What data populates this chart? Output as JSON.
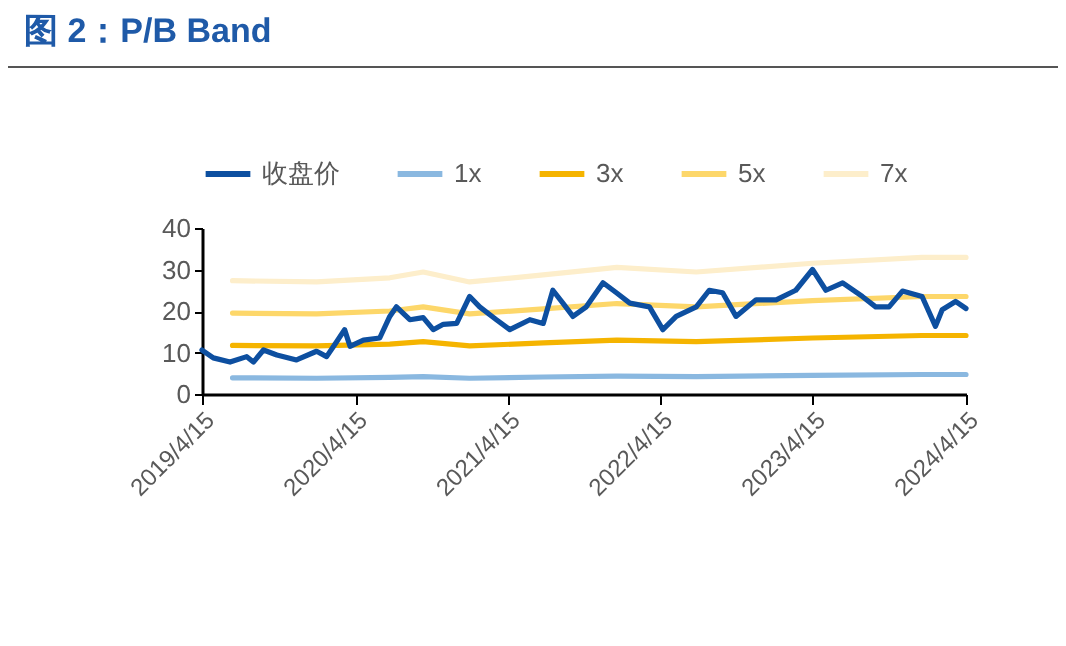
{
  "chart_data": {
    "type": "line",
    "title": "图 2：P/B Band",
    "x": [
      "2019-04-15",
      "2019-05-12",
      "2019-06-21",
      "2019-07-31",
      "2019-08-16",
      "2019-09-09",
      "2019-10-11",
      "2019-11-27",
      "2020-01-14",
      "2020-02-07",
      "2020-03-02",
      "2020-03-21",
      "2020-04-03",
      "2020-05-05",
      "2020-06-13",
      "2020-07-07",
      "2020-07-23",
      "2020-08-24",
      "2020-09-25",
      "2020-10-19",
      "2020-11-12",
      "2020-12-14",
      "2021-01-14",
      "2021-02-07",
      "2021-03-19",
      "2021-04-20",
      "2021-06-07",
      "2021-07-09",
      "2021-08-01",
      "2021-08-25",
      "2021-09-18",
      "2021-10-20",
      "2021-11-29",
      "2021-12-31",
      "2022-02-01",
      "2022-03-20",
      "2022-04-21",
      "2022-05-23",
      "2022-07-10",
      "2022-08-10",
      "2022-09-11",
      "2022-10-13",
      "2022-11-30",
      "2023-01-17",
      "2023-03-05",
      "2023-04-14",
      "2023-05-16",
      "2023-06-25",
      "2023-08-11",
      "2023-09-12",
      "2023-10-14",
      "2023-11-15",
      "2024-01-01",
      "2024-02-02",
      "2024-02-18",
      "2024-03-21",
      "2024-04-15"
    ],
    "series": [
      {
        "name": "收盘价",
        "color": "#0d4fa0",
        "values": [
          10.6,
          8.7,
          7.7,
          9,
          7.7,
          10.6,
          9.4,
          8.2,
          10.3,
          9,
          12.6,
          15.5,
          11.5,
          13,
          13.5,
          18.7,
          21,
          17.9,
          18.4,
          15.5,
          16.8,
          17,
          23.5,
          21,
          17.9,
          15.5,
          17.9,
          17,
          25,
          21.9,
          18.7,
          21,
          26.8,
          24.4,
          21.9,
          21,
          15.5,
          18.7,
          21,
          25,
          24.4,
          18.7,
          22.7,
          22.7,
          25,
          30,
          25,
          26.8,
          23.5,
          21,
          21,
          24.8,
          23.5,
          16.3,
          20.3,
          22.3,
          20.6
        ]
      },
      {
        "name": "1x",
        "color": "#8ab8e0",
        "x": [
          "2019-06-27",
          "2020-01-14",
          "2020-07-07",
          "2020-09-25",
          "2021-01-14",
          "2021-07-09",
          "2022-01-01",
          "2022-07-10",
          "2023-04-14",
          "2024-01-01",
          "2024-04-15"
        ],
        "values": [
          3.9,
          3.8,
          4.0,
          4.2,
          3.8,
          4.1,
          4.3,
          4.2,
          4.5,
          4.7,
          4.7
        ]
      },
      {
        "name": "3x",
        "color": "#f5b400",
        "x": [
          "2019-06-27",
          "2020-01-14",
          "2020-07-07",
          "2020-09-25",
          "2021-01-14",
          "2021-07-09",
          "2022-01-01",
          "2022-07-10",
          "2023-04-14",
          "2024-01-01",
          "2024-04-15"
        ],
        "values": [
          11.7,
          11.6,
          12,
          12.6,
          11.6,
          12.3,
          13,
          12.6,
          13.5,
          14.1,
          14.1
        ]
      },
      {
        "name": "5x",
        "color": "#fdd76a",
        "x": [
          "2019-06-27",
          "2020-01-14",
          "2020-07-07",
          "2020-09-25",
          "2021-01-14",
          "2021-07-09",
          "2022-01-01",
          "2022-07-10",
          "2023-04-14",
          "2024-01-01",
          "2024-04-15"
        ],
        "values": [
          19.5,
          19.3,
          20,
          21,
          19.3,
          20.5,
          21.8,
          21,
          22.5,
          23.5,
          23.5
        ]
      },
      {
        "name": "7x",
        "color": "#fdeecb",
        "x": [
          "2019-06-27",
          "2020-01-14",
          "2020-07-07",
          "2020-09-25",
          "2021-01-14",
          "2021-07-09",
          "2022-01-01",
          "2022-07-10",
          "2023-04-14",
          "2024-01-01",
          "2024-04-15"
        ],
        "values": [
          27.3,
          27,
          28,
          29.4,
          27,
          28.7,
          30.5,
          29.4,
          31.5,
          32.9,
          32.9
        ]
      }
    ],
    "xlim": [
      "2019-04-15",
      "2024-04-15"
    ],
    "xticks": [
      {
        "value": "2019-04-15",
        "label": "2019/4/15"
      },
      {
        "value": "2020-04-15",
        "label": "2020/4/15"
      },
      {
        "value": "2021-04-15",
        "label": "2021/4/15"
      },
      {
        "value": "2022-04-15",
        "label": "2022/4/15"
      },
      {
        "value": "2023-04-15",
        "label": "2023/4/15"
      },
      {
        "value": "2024-04-15",
        "label": "2024/4/15"
      }
    ],
    "ylim": [
      0,
      40
    ],
    "yticks": [
      0,
      10,
      20,
      30,
      40
    ],
    "grid": false,
    "legend": "top",
    "marker": "none",
    "line_style": "solid"
  }
}
